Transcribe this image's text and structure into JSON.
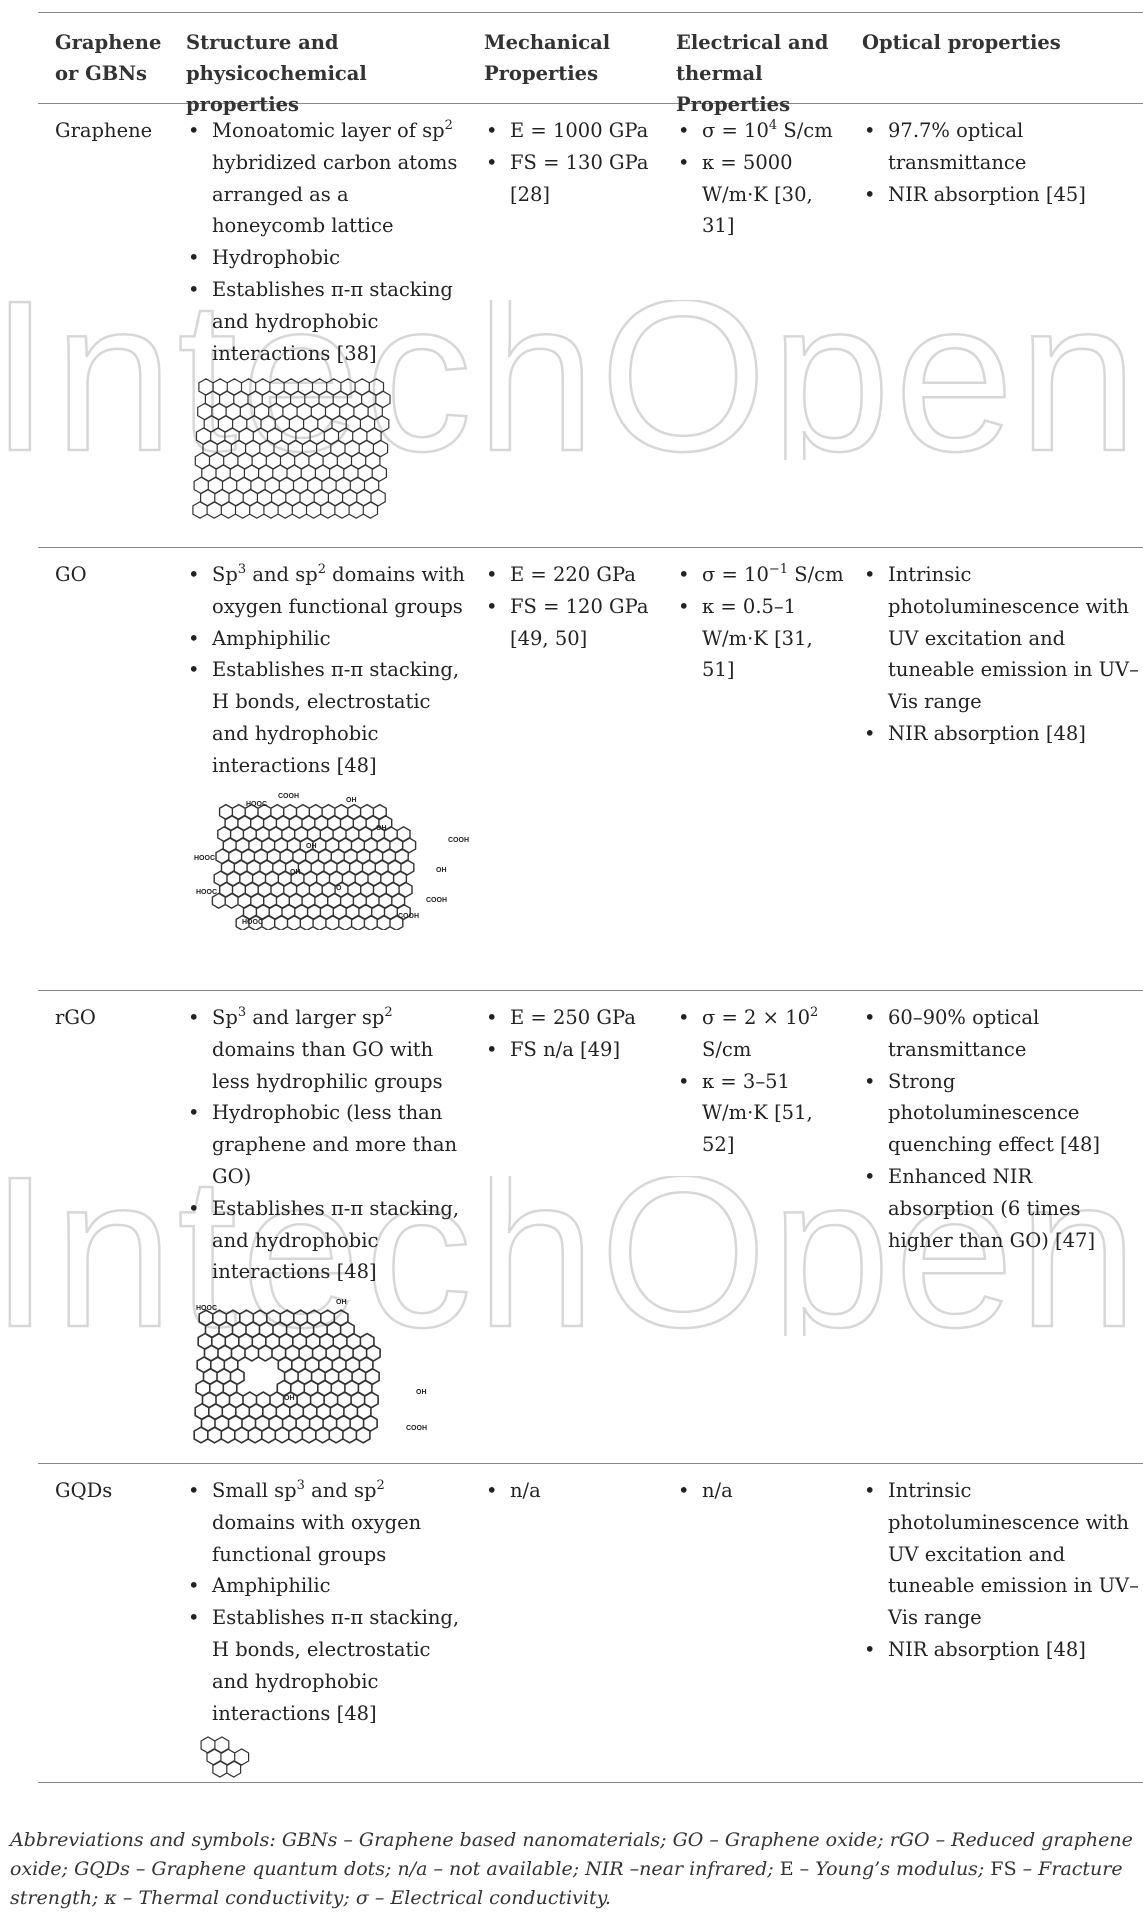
{
  "table": {
    "headers": [
      "Graphene or GBNs",
      "Structure and physicochemical properties",
      "Mechanical Properties",
      "Electrical and thermal Properties",
      "Optical properties"
    ],
    "rows": [
      {
        "material": "Graphene",
        "structure": [
          {
            "pre": "Monoatomic layer of sp",
            "sup": "2",
            "post": " hybridized carbon atoms arranged as a honeycomb lattice"
          },
          {
            "pre": "Hydrophobic"
          },
          {
            "pre": "Establishes π-π stacking and hydrophobic interactions [38]"
          }
        ],
        "mechanical": [
          "E = 1000 GPa",
          "FS = 130 GPa [28]"
        ],
        "electrical": [
          {
            "pre": "σ = 10",
            "sup": "4",
            "post": " S/cm"
          },
          {
            "pre": "κ = 5000 W/m·K [30, 31]"
          }
        ],
        "optical": [
          "97.7% optical transmittance",
          "NIR absorption [45]"
        ]
      },
      {
        "material": "GO",
        "structure": [
          {
            "pre": "Sp",
            "sup": "3",
            "post": " and sp"
          },
          {
            "pre": "Amphiphilic"
          },
          {
            "pre": "Establishes π-π stacking, H bonds, electrostatic and hydrophobic interactions [48]"
          }
        ],
        "mechanical": [
          "E = 220 GPa",
          "FS = 120 GPa [49, 50]"
        ],
        "electrical": [
          {
            "pre": "σ = 10",
            "sup": "−1",
            "post": " S/cm"
          },
          {
            "pre": "κ = 0.5–1 W/m·K [31, 51]"
          }
        ],
        "optical": [
          "Intrinsic photoluminescence with UV excitation and tuneable emission in UV–Vis range",
          "NIR absorption [48]"
        ]
      },
      {
        "material": "rGO",
        "structure": [
          {
            "pre": "Sp",
            "sup": "3",
            "post": " and larger sp"
          },
          {
            "pre": "Hydrophobic (less than graphene and more than GO)"
          },
          {
            "pre": "Establishes π-π stacking, and hydrophobic interactions [48]"
          }
        ],
        "mechanical": [
          "E = 250 GPa",
          "FS n/a [49]"
        ],
        "electrical": [
          {
            "pre": "σ = 2 × 10",
            "sup": "2",
            "post": " S/cm"
          },
          {
            "pre": "κ = 3–51 W/m·K [51, 52]"
          }
        ],
        "optical": [
          "60–90% optical transmittance",
          "Strong photoluminescence quenching effect [48]",
          "Enhanced NIR absorption (6 times higher than GO) [47]"
        ]
      },
      {
        "material": "GQDs",
        "structure": [
          {
            "pre": "Small sp",
            "sup": "3",
            "post": " and sp"
          },
          {
            "pre": "Amphiphilic"
          },
          {
            "pre": "Establishes π-π stacking, H bonds, electrostatic and hydrophobic interactions [48]"
          }
        ],
        "mechanical": [
          "n/a"
        ],
        "electrical": [
          {
            "pre": "n/a"
          }
        ],
        "optical": [
          "Intrinsic photoluminescence with UV excitation and tuneable emission in UV–Vis range",
          "NIR absorption [48]"
        ]
      }
    ],
    "go_structure_tail": {
      "sup": "2",
      "post": " domains with oxygen functional groups"
    },
    "rgo_structure_tail": {
      "sup": "2",
      "post": " domains than GO with less hydrophilic groups"
    },
    "gqd_structure_tail": {
      "sup": "2",
      "post": " domains with oxygen functional groups"
    }
  },
  "molecule_labels": {
    "cooh": "COOH",
    "hooc": "HOOC",
    "oh": "OH",
    "o": "O"
  },
  "caption": {
    "line1": "Abbreviations and symbols: GBNs – Graphene based nanomaterials; GO – Graphene oxide; rGO – Reduced graphene",
    "line2_a": "oxide; GQDs – Graphene quantum dots; n/a – not available; NIR –near infrared; ",
    "line2_E": "E",
    "line2_b": " – Young’s modulus; ",
    "line2_FS": "FS",
    "line2_c": " – Fracture",
    "line3": "strength; κ – Thermal conductivity; σ – Electrical conductivity."
  },
  "watermark": {
    "text": "IntechOpen",
    "color": "#d9d9d9"
  }
}
